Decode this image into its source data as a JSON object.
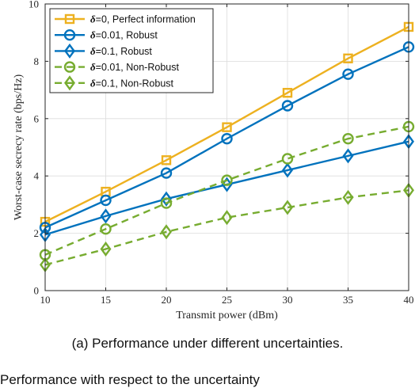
{
  "chart_data": {
    "type": "line",
    "xlabel": "Transmit power (dBm)",
    "ylabel": "Worst-case secrecy rate  (bps/Hz)",
    "x": [
      10,
      15,
      20,
      25,
      30,
      35,
      40
    ],
    "xlim": [
      10,
      40
    ],
    "ylim": [
      0,
      10
    ],
    "xticks": [
      "10",
      "15",
      "20",
      "25",
      "30",
      "35",
      "40"
    ],
    "yticks": [
      "0",
      "2",
      "4",
      "6",
      "8",
      "10"
    ],
    "grid": true,
    "legend_position": "top-left",
    "series": [
      {
        "label_symbol": "δ",
        "label_rest": "=0, Perfect information",
        "values": [
          2.4,
          3.45,
          4.55,
          5.7,
          6.9,
          8.1,
          9.2
        ],
        "color": "#EDB120",
        "line": "solid",
        "marker": "square"
      },
      {
        "label_symbol": "δ",
        "label_rest": "=0.01, Robust",
        "values": [
          2.2,
          3.15,
          4.1,
          5.3,
          6.45,
          7.55,
          8.5
        ],
        "color": "#0072BD",
        "line": "solid",
        "marker": "circle"
      },
      {
        "label_symbol": "δ",
        "label_rest": "=0.1, Robust",
        "values": [
          1.95,
          2.6,
          3.2,
          3.7,
          4.2,
          4.7,
          5.2
        ],
        "color": "#0072BD",
        "line": "solid",
        "marker": "diamond"
      },
      {
        "label_symbol": "δ",
        "label_rest": "=0.01, Non-Robust",
        "values": [
          1.25,
          2.15,
          3.05,
          3.85,
          4.6,
          5.3,
          5.72
        ],
        "color": "#77AC30",
        "line": "dashed",
        "marker": "circle"
      },
      {
        "label_symbol": "δ",
        "label_rest": "=0.1, Non-Robust",
        "values": [
          0.9,
          1.45,
          2.05,
          2.55,
          2.9,
          3.25,
          3.5
        ],
        "color": "#77AC30",
        "line": "dashed",
        "marker": "diamond"
      }
    ]
  },
  "caption": "(a) Performance under different uncertainties.",
  "trailing_text": "Performance with respect to the uncertainty"
}
